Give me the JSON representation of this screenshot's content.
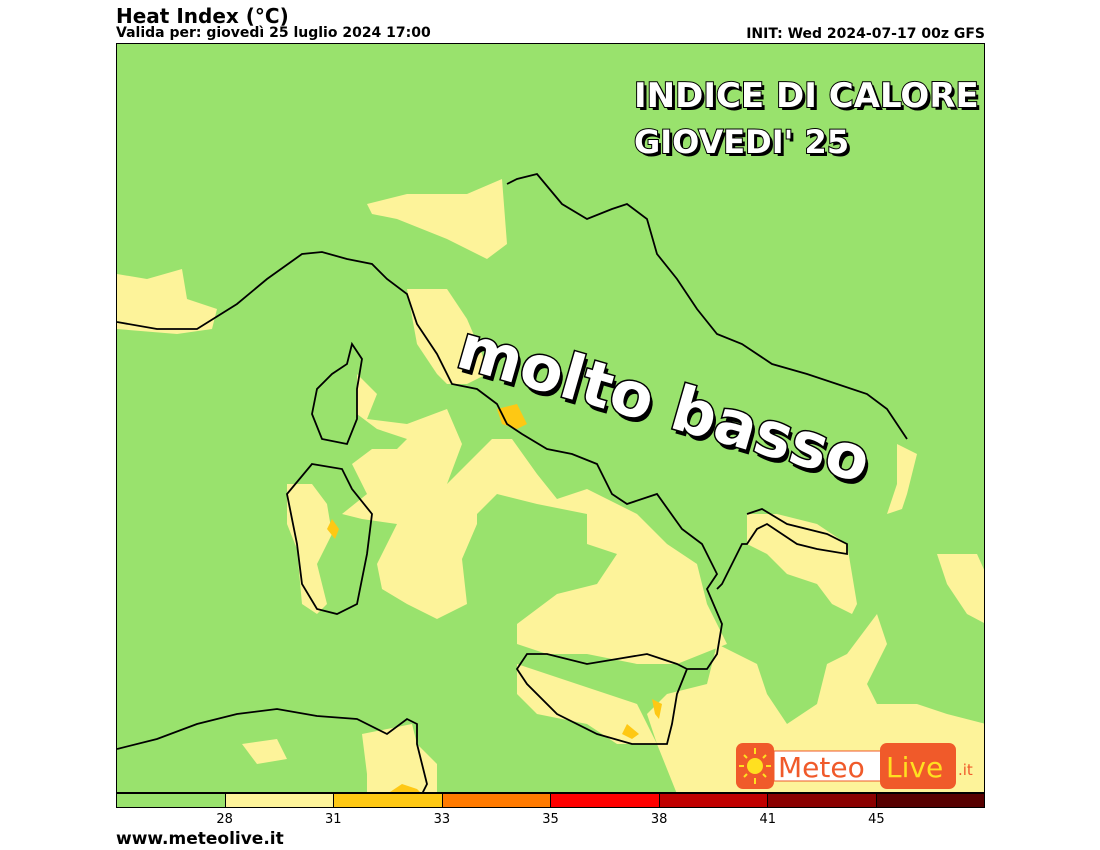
{
  "header": {
    "title": "Heat Index (°C)",
    "valid": "Valida per: giovedì 25 luglio 2024 17:00",
    "init": "INIT: Wed 2024-07-17 00z GFS"
  },
  "overlay": {
    "line1": "INDICE DI CALORE",
    "line2": "GIOVEDI' 25",
    "label": "molto basso"
  },
  "colorbar": {
    "colors": [
      "#99e26d",
      "#fdf39a",
      "#fec814",
      "#ff7a00",
      "#fe0000",
      "#c00000",
      "#8a0000",
      "#570000"
    ],
    "ticks": [
      "28",
      "31",
      "33",
      "35",
      "38",
      "41",
      "45"
    ]
  },
  "logo": {
    "text1": "Meteo",
    "text2": "Live",
    "text3": ".it"
  },
  "footer": {
    "site": "www.meteolive.it"
  }
}
